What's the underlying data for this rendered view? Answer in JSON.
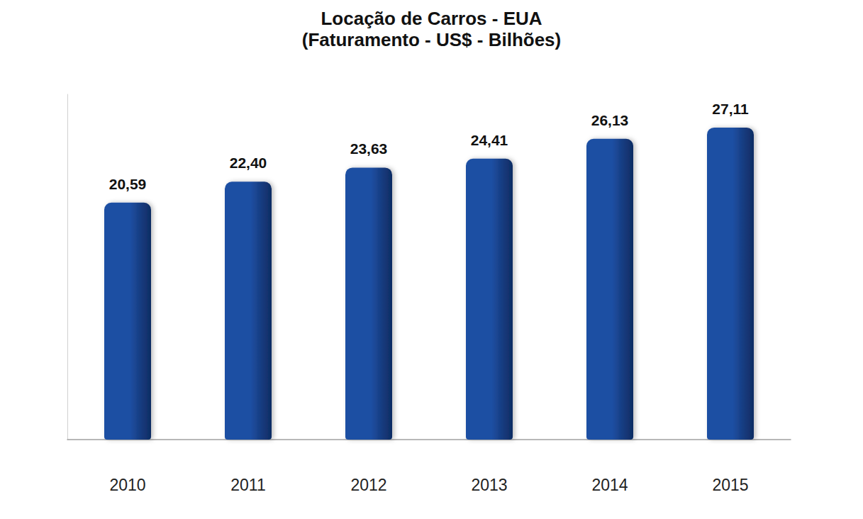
{
  "chart_data": {
    "type": "bar",
    "title": "Locação de Carros - EUA",
    "subtitle": "(Faturamento - US$ - Bilhões)",
    "categories": [
      "2010",
      "2011",
      "2012",
      "2013",
      "2014",
      "2015"
    ],
    "values": [
      20.59,
      22.4,
      23.63,
      24.41,
      26.13,
      27.11
    ],
    "value_labels": [
      "20,59",
      "22,40",
      "23,63",
      "24,41",
      "26,13",
      "27,11"
    ],
    "color": "#1f4fa3",
    "ylim": [
      0,
      30
    ],
    "grid": false,
    "data_labels": true,
    "tick_labels": "x"
  }
}
